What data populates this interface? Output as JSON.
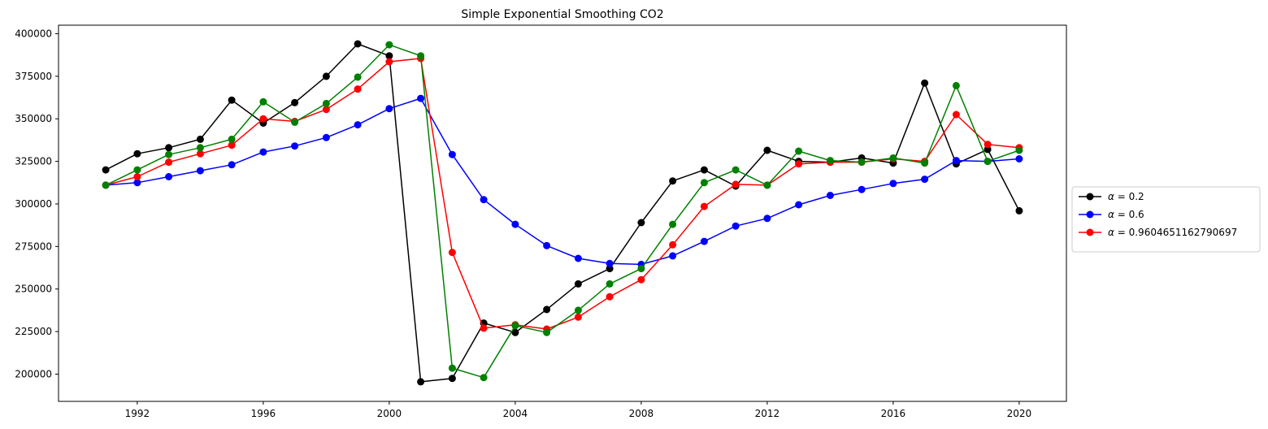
{
  "chart_data": {
    "type": "line",
    "title": "Simple Exponential Smoothing CO2",
    "xlabel": "",
    "ylabel": "",
    "xlim": [
      1989.5,
      2021.5
    ],
    "ylim": [
      184000,
      405000
    ],
    "x_ticks": [
      1992,
      1996,
      2000,
      2004,
      2008,
      2012,
      2016,
      2020
    ],
    "x_tick_labels": [
      "1992",
      "1996",
      "2000",
      "2004",
      "2008",
      "2012",
      "2016",
      "2020"
    ],
    "y_ticks": [
      200000,
      225000,
      250000,
      275000,
      300000,
      325000,
      350000,
      375000,
      400000
    ],
    "y_tick_labels": [
      "200000",
      "225000",
      "250000",
      "275000",
      "300000",
      "325000",
      "350000",
      "375000",
      "400000"
    ],
    "grid": false,
    "legend_position": "right",
    "x": [
      1991,
      1992,
      1993,
      1994,
      1995,
      1996,
      1997,
      1998,
      1999,
      2000,
      2001,
      2002,
      2003,
      2004,
      2005,
      2006,
      2007,
      2008,
      2009,
      2010,
      2011,
      2012,
      2013,
      2014,
      2015,
      2016,
      2017,
      2018,
      2019,
      2020
    ],
    "series": [
      {
        "name": "α = 0.2",
        "legend_prefix": "α",
        "legend_suffix": " = 0.2",
        "color": "#000000",
        "in_legend": true,
        "values": [
          320000,
          329500,
          333000,
          338000,
          361000,
          347500,
          359500,
          375000,
          394000,
          387000,
          195500,
          197500,
          230000,
          224500,
          238000,
          253000,
          262000,
          289000,
          313500,
          320000,
          310500,
          331500,
          325000,
          324500,
          327000,
          324000,
          371000,
          323500,
          332000,
          296000
        ]
      },
      {
        "name": "α = 0.6",
        "legend_prefix": "α",
        "legend_suffix": " = 0.6",
        "color": "#0000ff",
        "in_legend": true,
        "values": [
          311000,
          312500,
          316000,
          319500,
          323000,
          330500,
          334000,
          339000,
          346500,
          356000,
          362000,
          329000,
          302500,
          288000,
          275500,
          268000,
          265000,
          264500,
          269500,
          278000,
          287000,
          291500,
          299500,
          305000,
          308500,
          312000,
          314500,
          325500,
          325000,
          326500
        ]
      },
      {
        "name": "α = 0.9604651162790697",
        "legend_prefix": "α",
        "legend_suffix": " = 0.9604651162790697",
        "color": "#ff0000",
        "in_legend": true,
        "values": [
          311000,
          316000,
          324500,
          329500,
          334500,
          350000,
          348500,
          355500,
          367500,
          383500,
          385500,
          271500,
          227000,
          229000,
          226500,
          233500,
          245500,
          255500,
          276000,
          298500,
          311500,
          311000,
          323500,
          324500,
          324500,
          326500,
          325000,
          352500,
          335000,
          333000
        ]
      },
      {
        "color": "#008000",
        "in_legend": false,
        "values": [
          311000,
          320000,
          329000,
          333000,
          338000,
          360000,
          348000,
          359000,
          374500,
          393500,
          387000,
          203500,
          198000,
          228500,
          224500,
          237500,
          253000,
          262000,
          288000,
          312500,
          320000,
          311000,
          331000,
          325500,
          324500,
          327000,
          324000,
          369500,
          325000,
          331500
        ]
      }
    ]
  }
}
